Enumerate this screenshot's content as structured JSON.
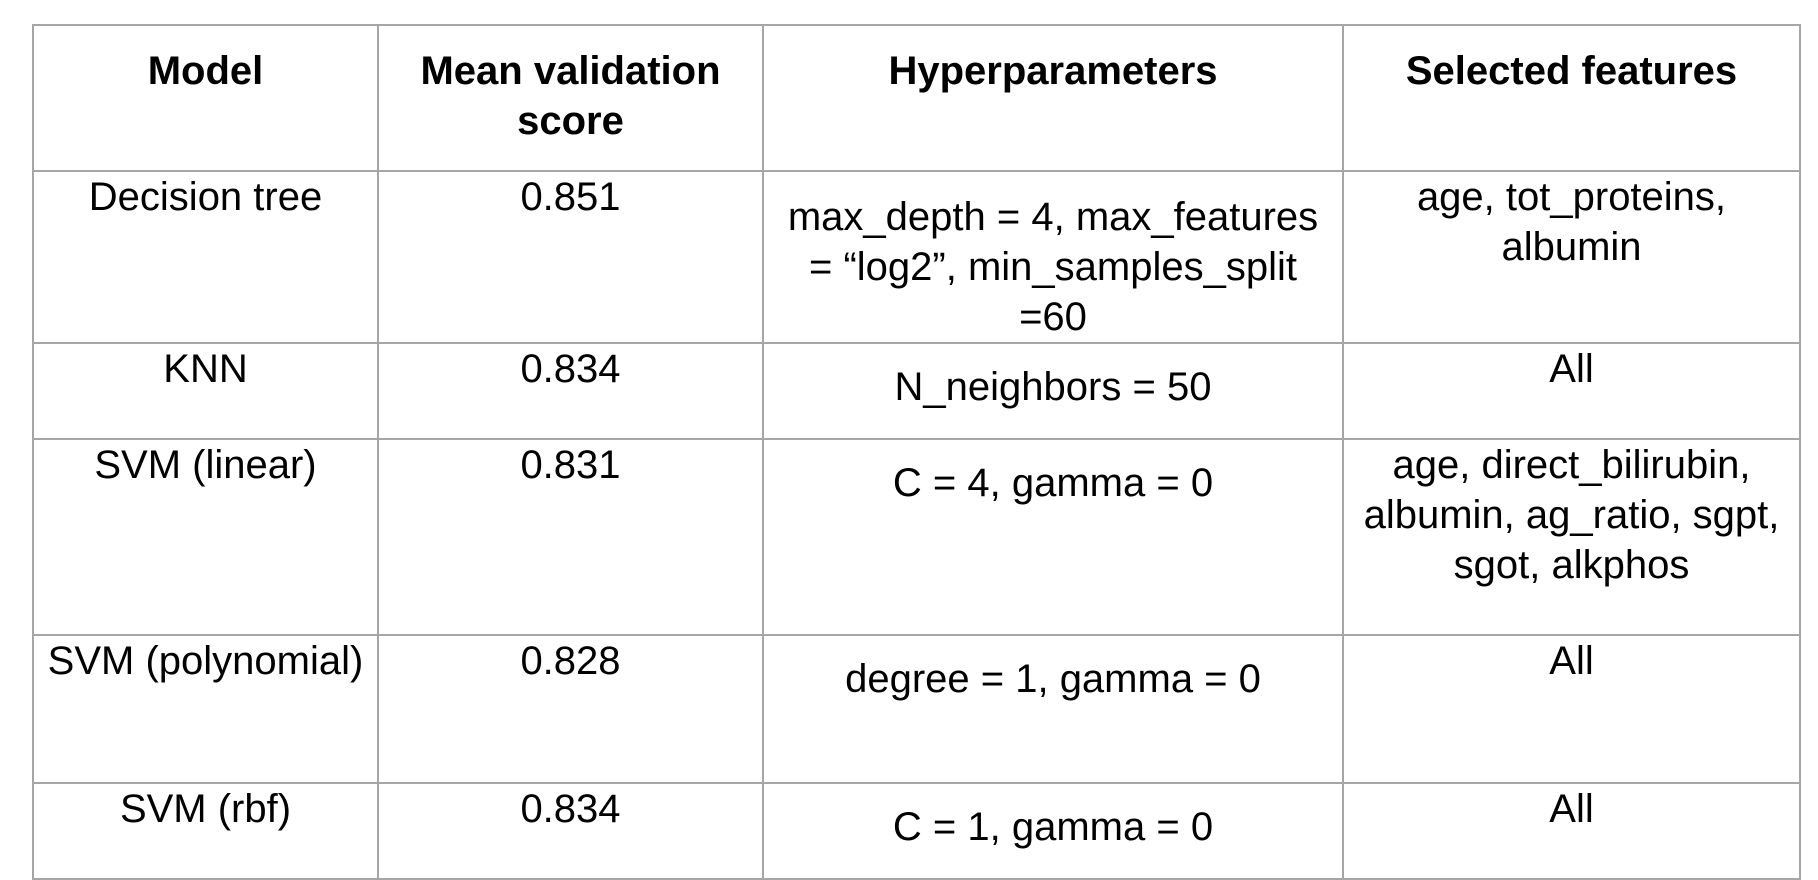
{
  "table": {
    "headers": [
      "Model",
      "Mean validation score",
      "Hyperparameters",
      "Selected features"
    ],
    "rows": [
      {
        "model": "Decision tree",
        "score": "0.851",
        "hyperparameters": "max_depth = 4, max_features = “log2”, min_samples_split =60",
        "features": "age, tot_proteins, albumin"
      },
      {
        "model": "KNN",
        "score": "0.834",
        "hyperparameters": "N_neighbors = 50",
        "features": "All"
      },
      {
        "model": "SVM (linear)",
        "score": "0.831",
        "hyperparameters": "C = 4, gamma = 0",
        "features": "age, direct_bilirubin, albumin, ag_ratio, sgpt, sgot, alkphos"
      },
      {
        "model": "SVM (polynomial)",
        "score": "0.828",
        "hyperparameters": "degree = 1, gamma = 0",
        "features": "All"
      },
      {
        "model": "SVM (rbf)",
        "score": "0.834",
        "hyperparameters": "C = 1, gamma = 0",
        "features": "All"
      }
    ]
  },
  "colors": {
    "border": "#a6a6a6",
    "text": "#000000",
    "background": "#ffffff"
  }
}
